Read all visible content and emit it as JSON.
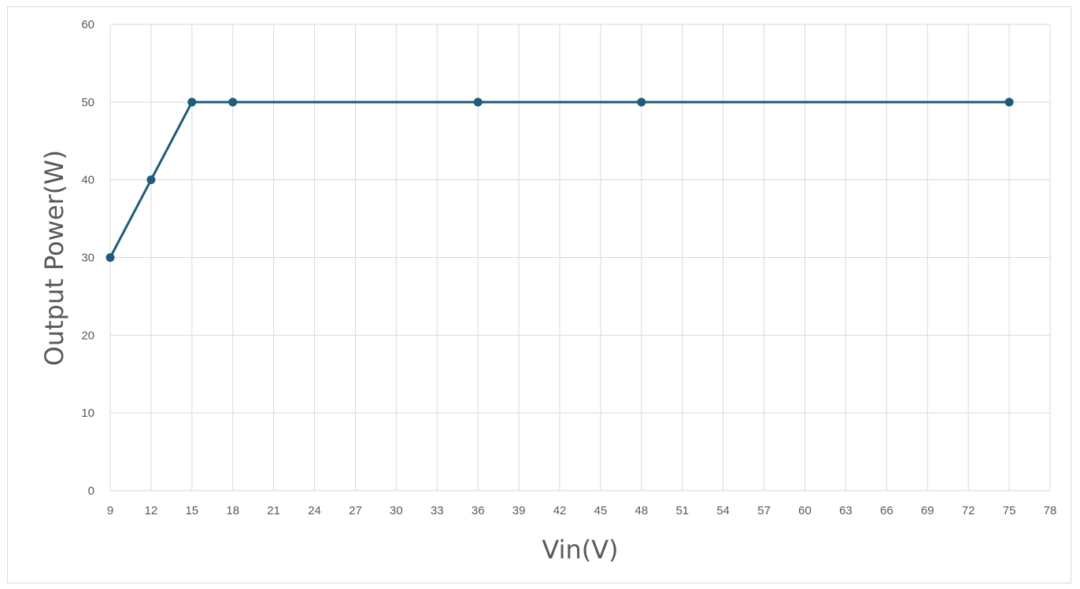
{
  "chart_data": {
    "type": "line",
    "xlabel": "Vin(V)",
    "ylabel": "Output Power(W)",
    "xlim": [
      9,
      78
    ],
    "ylim": [
      0,
      60
    ],
    "x_ticks": [
      "9",
      "12",
      "15",
      "18",
      "21",
      "24",
      "27",
      "30",
      "33",
      "36",
      "39",
      "42",
      "45",
      "48",
      "51",
      "54",
      "57",
      "60",
      "63",
      "66",
      "69",
      "72",
      "75",
      "78"
    ],
    "y_ticks": [
      "0",
      "10",
      "20",
      "30",
      "40",
      "50",
      "60"
    ],
    "grid": true,
    "series": [
      {
        "color": "#1f5c7a",
        "x": [
          9,
          12,
          15,
          18,
          36,
          48,
          75
        ],
        "y": [
          30,
          40,
          50,
          50,
          50,
          50,
          50
        ]
      }
    ]
  }
}
